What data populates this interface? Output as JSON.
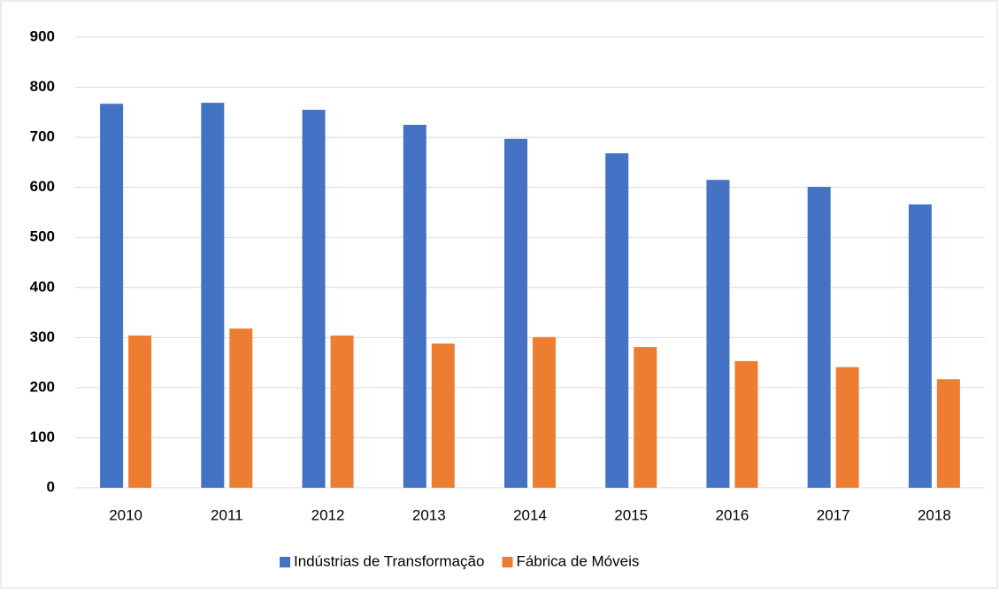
{
  "chart_data": {
    "type": "bar",
    "categories": [
      "2010",
      "2011",
      "2012",
      "2013",
      "2014",
      "2015",
      "2016",
      "2017",
      "2018"
    ],
    "series": [
      {
        "name": "Indústrias de Transformação",
        "color": "#4472c4",
        "values": [
          767,
          769,
          755,
          725,
          697,
          668,
          615,
          601,
          566
        ]
      },
      {
        "name": "Fábrica de Móveis",
        "color": "#ed7d31",
        "values": [
          304,
          318,
          304,
          288,
          301,
          281,
          253,
          241,
          217
        ]
      }
    ],
    "ylim": [
      0,
      900
    ],
    "yticks": [
      0,
      100,
      200,
      300,
      400,
      500,
      600,
      700,
      800,
      900
    ],
    "grid": true,
    "legend": "bottom"
  }
}
